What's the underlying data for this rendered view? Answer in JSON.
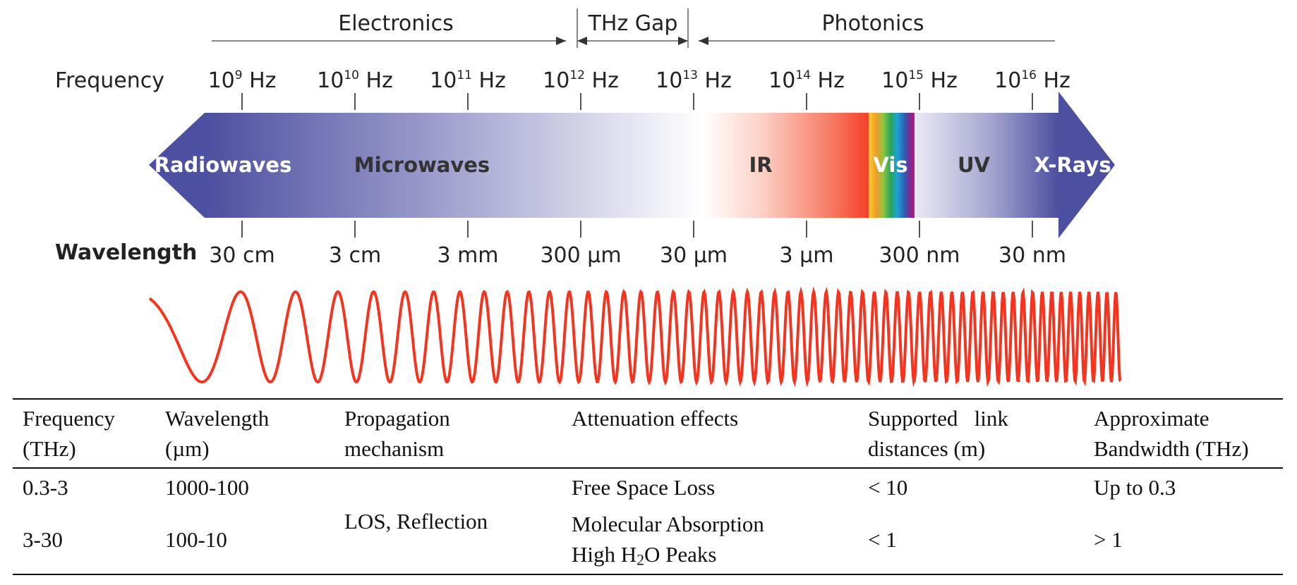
{
  "bands": {
    "electronics": "Electronics",
    "thz_gap": "THz Gap",
    "photonics": "Photonics"
  },
  "row_labels": {
    "frequency": "Frequency",
    "wavelength": "Wavelength"
  },
  "frequency_ticks": [
    {
      "base": "10",
      "exp": "9",
      "unit": "Hz"
    },
    {
      "base": "10",
      "exp": "10",
      "unit": "Hz"
    },
    {
      "base": "10",
      "exp": "11",
      "unit": "Hz"
    },
    {
      "base": "10",
      "exp": "12",
      "unit": "Hz"
    },
    {
      "base": "10",
      "exp": "13",
      "unit": "Hz"
    },
    {
      "base": "10",
      "exp": "14",
      "unit": "Hz"
    },
    {
      "base": "10",
      "exp": "15",
      "unit": "Hz"
    },
    {
      "base": "10",
      "exp": "16",
      "unit": "Hz"
    }
  ],
  "wavelength_ticks": [
    "30 cm",
    "3 cm",
    "3 mm",
    "300 µm",
    "30 µm",
    "3 µm",
    "300 nm",
    "30 nm"
  ],
  "regions": {
    "radiowaves": "Radiowaves",
    "microwaves": "Microwaves",
    "ir": "IR",
    "vis": "Vis",
    "uv": "UV",
    "xrays": "X-Rays"
  },
  "colors": {
    "radio_blue": "#4d4fa0",
    "ir_red": "#f4412a",
    "wave_red": "#f5341f",
    "spectrum": [
      "#f8d22a",
      "#f39a2a",
      "#8cc63f",
      "#29a55a",
      "#1fa2d6",
      "#2f5fb3",
      "#7a2b94",
      "#c0147a"
    ]
  },
  "table": {
    "headers": [
      [
        "Frequency",
        "(THz)"
      ],
      [
        "Wavelength",
        "(µm)"
      ],
      [
        "Propagation",
        "mechanism"
      ],
      [
        "Attenuation effects",
        ""
      ],
      [
        "Supported   link",
        "distances (m)"
      ],
      [
        "Approximate",
        "Bandwidth (THz)"
      ]
    ],
    "rows": [
      {
        "frequency": "0.3-3",
        "wavelength": "1000-100",
        "attenuation": "Free Space Loss",
        "distance": "< 10",
        "bandwidth": "Up to 0.3"
      },
      {
        "frequency": "3-30",
        "wavelength": "100-10",
        "attenuation_line1": "Molecular Absorption",
        "attenuation_line2_pre": "High H",
        "attenuation_line2_sub": "2",
        "attenuation_line2_post": "O Peaks",
        "distance": "< 1",
        "bandwidth": "> 1"
      }
    ],
    "propagation": "LOS, Reflection"
  }
}
